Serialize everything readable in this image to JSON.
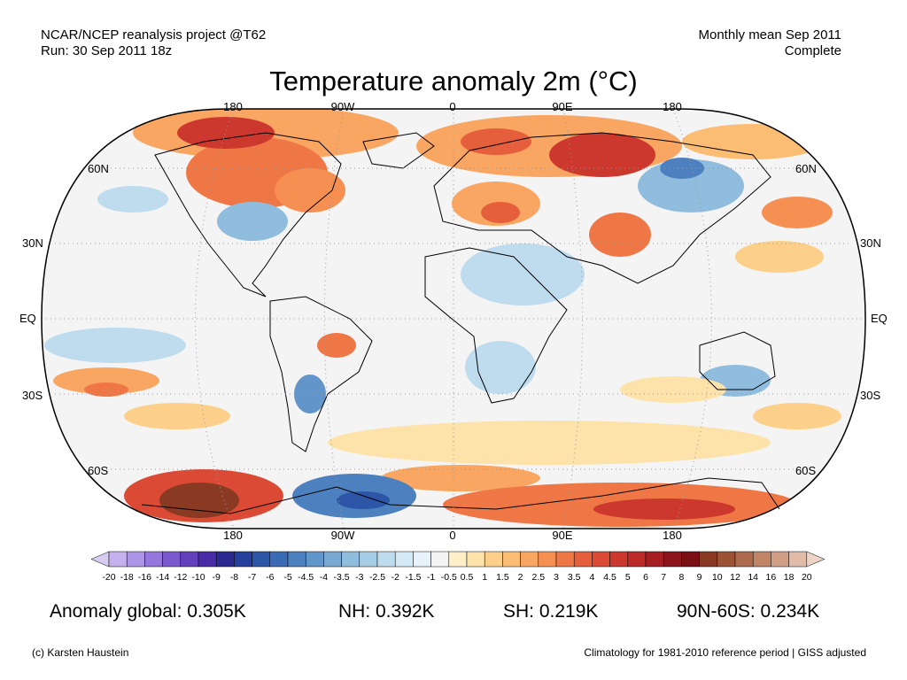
{
  "header": {
    "source_line1": "NCAR/NCEP reanalysis project @T62",
    "source_line2": "Run: 30 Sep 2011 18z",
    "period_line1": "Monthly mean Sep 2011",
    "period_line2": "Complete"
  },
  "title": "Temperature anomaly 2m (°C)",
  "map": {
    "lon_labels": [
      "180",
      "90W",
      "0",
      "90E",
      "180"
    ],
    "lat_labels_left": [
      "60N",
      "30N",
      "EQ",
      "30S",
      "60S"
    ],
    "lat_labels_right": [
      "60N",
      "30N",
      "EQ",
      "30S",
      "60S"
    ],
    "ocean_color": "#f4f4f4",
    "land_outline_color": "#000000"
  },
  "colorbar": {
    "labels": [
      "-20",
      "-18",
      "-16",
      "-14",
      "-12",
      "-10",
      "-9",
      "-8",
      "-7",
      "-6",
      "-5",
      "-4.5",
      "-4",
      "-3.5",
      "-3",
      "-2.5",
      "-2",
      "-1.5",
      "-1",
      "-0.5",
      "0.5",
      "1",
      "1.5",
      "2",
      "2.5",
      "3",
      "3.5",
      "4",
      "4.5",
      "5",
      "6",
      "7",
      "8",
      "9",
      "10",
      "12",
      "14",
      "16",
      "18",
      "20"
    ],
    "colors": [
      "#d9ccf2",
      "#c4b1ee",
      "#ad94e6",
      "#9476dc",
      "#7c58cf",
      "#6440bd",
      "#4a2aa6",
      "#2c2a91",
      "#253f9c",
      "#2d55a8",
      "#3a6bb4",
      "#4d80bf",
      "#6295c9",
      "#79a9d3",
      "#90bcdd",
      "#a7cde6",
      "#bedcee",
      "#d3e9f6",
      "#e7f3fb",
      "#f4f4f4",
      "#fdefc8",
      "#fde3a9",
      "#fcd08b",
      "#fbbc74",
      "#f9a662",
      "#f58f52",
      "#ef7746",
      "#e65f3c",
      "#da4a34",
      "#cc382d",
      "#bb2a27",
      "#a61e22",
      "#8e141c",
      "#7a0f16",
      "#8a3a22",
      "#9c5234",
      "#ae6a4c",
      "#c08466",
      "#d09f86",
      "#e0bba8",
      "#ecd3c5"
    ]
  },
  "stats": {
    "global": "Anomaly global: 0.305K",
    "nh": "NH: 0.392K",
    "sh": "SH: 0.219K",
    "band": "90N-60S: 0.234K"
  },
  "footer": {
    "credit": "(c) Karsten Haustein",
    "climatology": "Climatology for 1981-2010 reference period | GISS adjusted"
  }
}
